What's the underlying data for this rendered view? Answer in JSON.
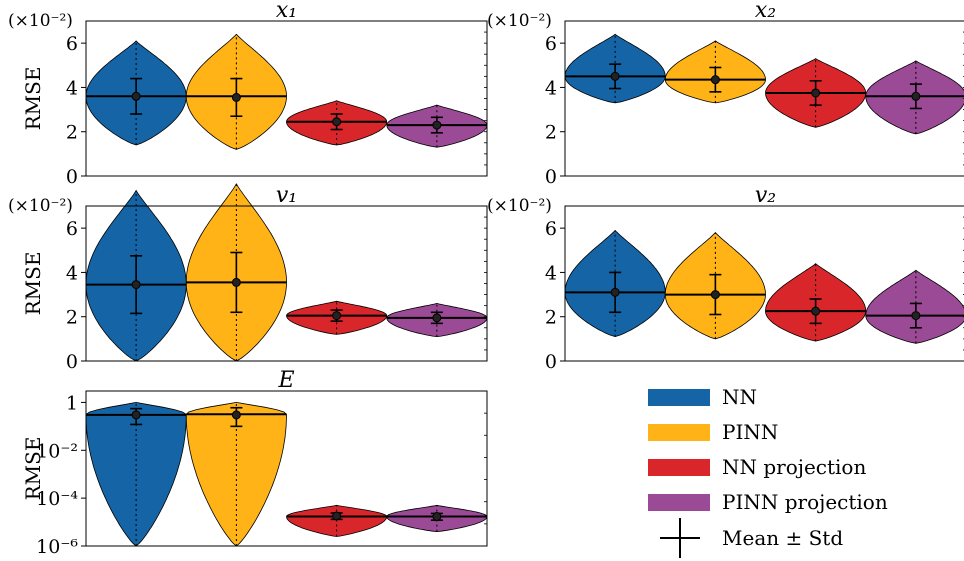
{
  "figure": {
    "colors": {
      "NN": "#1565a6",
      "PINN": "#ffb316",
      "NN projection": "#d9262b",
      "PINN projection": "#9b4a96"
    },
    "legend": {
      "entries": [
        "NN",
        "PINN",
        "NN projection",
        "PINN projection"
      ],
      "marker_label": "Mean ± Std"
    }
  },
  "chart_data": [
    {
      "type": "violin",
      "title": "x₁",
      "ylabel": "RMSE",
      "scale_label": "(×10⁻²)",
      "ylim": [
        0,
        7
      ],
      "yticks": [
        0,
        2,
        4,
        6
      ],
      "yticklabels": [
        "0",
        "2",
        "4",
        "6"
      ],
      "series": [
        {
          "name": "NN",
          "mean": 3.6,
          "std": 0.8,
          "median": 3.6,
          "min": 1.4,
          "max": 6.1
        },
        {
          "name": "PINN",
          "mean": 3.55,
          "std": 0.85,
          "median": 3.6,
          "min": 1.2,
          "max": 6.4
        },
        {
          "name": "NN projection",
          "mean": 2.45,
          "std": 0.35,
          "median": 2.45,
          "min": 1.4,
          "max": 3.4
        },
        {
          "name": "PINN projection",
          "mean": 2.3,
          "std": 0.35,
          "median": 2.3,
          "min": 1.3,
          "max": 3.2
        }
      ]
    },
    {
      "type": "violin",
      "title": "x₂",
      "ylabel": "",
      "scale_label": "(×10⁻²)",
      "ylim": [
        0,
        7
      ],
      "yticks": [
        0,
        2,
        4,
        6
      ],
      "yticklabels": [
        "0",
        "2",
        "4",
        "6"
      ],
      "series": [
        {
          "name": "NN",
          "mean": 4.5,
          "std": 0.55,
          "median": 4.5,
          "min": 3.3,
          "max": 6.4
        },
        {
          "name": "PINN",
          "mean": 4.35,
          "std": 0.55,
          "median": 4.35,
          "min": 3.3,
          "max": 6.1
        },
        {
          "name": "NN projection",
          "mean": 3.75,
          "std": 0.55,
          "median": 3.75,
          "min": 2.2,
          "max": 5.3
        },
        {
          "name": "PINN projection",
          "mean": 3.6,
          "std": 0.55,
          "median": 3.6,
          "min": 1.9,
          "max": 5.2
        }
      ]
    },
    {
      "type": "violin",
      "title": "v₁",
      "ylabel": "RMSE",
      "scale_label": "(×10⁻²)",
      "ylim": [
        0,
        7
      ],
      "yticks": [
        0,
        2,
        4,
        6
      ],
      "yticklabels": [
        "0",
        "2",
        "4",
        "6"
      ],
      "series": [
        {
          "name": "NN",
          "mean": 3.45,
          "std": 1.3,
          "median": 3.45,
          "min": 0.0,
          "max": 7.7
        },
        {
          "name": "PINN",
          "mean": 3.55,
          "std": 1.35,
          "median": 3.55,
          "min": 0.0,
          "max": 8.0
        },
        {
          "name": "NN projection",
          "mean": 2.05,
          "std": 0.25,
          "median": 2.05,
          "min": 1.2,
          "max": 2.7
        },
        {
          "name": "PINN projection",
          "mean": 1.95,
          "std": 0.25,
          "median": 1.95,
          "min": 1.1,
          "max": 2.6
        }
      ]
    },
    {
      "type": "violin",
      "title": "v₂",
      "ylabel": "",
      "scale_label": "(×10⁻²)",
      "ylim": [
        0,
        7
      ],
      "yticks": [
        0,
        2,
        4,
        6
      ],
      "yticklabels": [
        "0",
        "2",
        "4",
        "6"
      ],
      "series": [
        {
          "name": "NN",
          "mean": 3.1,
          "std": 0.9,
          "median": 3.1,
          "min": 1.1,
          "max": 5.9
        },
        {
          "name": "PINN",
          "mean": 3.0,
          "std": 0.9,
          "median": 3.0,
          "min": 1.0,
          "max": 5.8
        },
        {
          "name": "NN projection",
          "mean": 2.25,
          "std": 0.55,
          "median": 2.25,
          "min": 0.9,
          "max": 4.4
        },
        {
          "name": "PINN projection",
          "mean": 2.05,
          "std": 0.55,
          "median": 2.05,
          "min": 0.8,
          "max": 4.1
        }
      ]
    },
    {
      "type": "violin",
      "title": "E",
      "ylabel": "RMSE",
      "yscale": "log",
      "ylim": [
        1e-06,
        3
      ],
      "yticks": [
        1e-06,
        0.0001,
        0.01,
        1
      ],
      "yticklabels": [
        "10⁻⁶",
        "10⁻⁴",
        "10⁻²",
        "1"
      ],
      "series": [
        {
          "name": "NN",
          "mean": 0.3,
          "std_low": 0.12,
          "std_high": 0.55,
          "median": 0.3,
          "min": 1e-06,
          "max": 1.0
        },
        {
          "name": "PINN",
          "mean": 0.3,
          "std_low": 0.1,
          "std_high": 0.6,
          "median": 0.32,
          "min": 1e-06,
          "max": 1.0
        },
        {
          "name": "NN projection",
          "mean": 1.8e-05,
          "std_low": 1.3e-05,
          "std_high": 2.4e-05,
          "median": 1.7e-05,
          "min": 2.5e-06,
          "max": 5e-05
        },
        {
          "name": "PINN projection",
          "mean": 1.7e-05,
          "std_low": 1.2e-05,
          "std_high": 2.3e-05,
          "median": 1.7e-05,
          "min": 4e-06,
          "max": 5e-05
        }
      ]
    }
  ]
}
